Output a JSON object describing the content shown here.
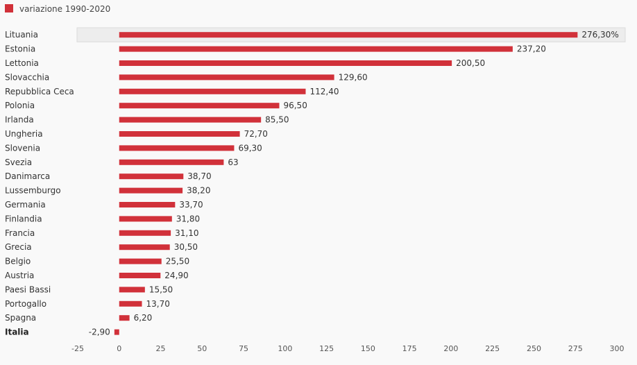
{
  "chart_data": {
    "type": "bar",
    "orientation": "horizontal",
    "legend": {
      "label": "variazione 1990-2020",
      "color": "#d1313a",
      "position": "top-left"
    },
    "categories": [
      "Lituania",
      "Estonia",
      "Lettonia",
      "Slovacchia",
      "Repubblica Ceca",
      "Polonia",
      "Irlanda",
      "Ungheria",
      "Slovenia",
      "Svezia",
      "Danimarca",
      "Lussemburgo",
      "Germania",
      "Finlandia",
      "Francia",
      "Grecia",
      "Belgio",
      "Austria",
      "Paesi Bassi",
      "Portogallo",
      "Spagna",
      "Italia"
    ],
    "values": [
      276.3,
      237.2,
      200.5,
      129.6,
      112.4,
      96.5,
      85.5,
      72.7,
      69.3,
      63,
      38.7,
      38.2,
      33.7,
      31.8,
      31.1,
      30.5,
      25.5,
      24.9,
      15.5,
      13.7,
      6.2,
      -2.9
    ],
    "value_labels": [
      "276,30%",
      "237,20",
      "200,50",
      "129,60",
      "112,40",
      "96,50",
      "85,50",
      "72,70",
      "69,30",
      "63",
      "38,70",
      "38,20",
      "33,70",
      "31,80",
      "31,10",
      "30,50",
      "25,50",
      "24,90",
      "15,50",
      "13,70",
      "6,20",
      "-2,90"
    ],
    "highlighted": [
      "Lituania"
    ],
    "bold_categories": [
      "Italia"
    ],
    "xlim": [
      -25,
      300
    ],
    "xticks": [
      "-25",
      "0",
      "25",
      "50",
      "75",
      "100",
      "125",
      "150",
      "175",
      "200",
      "225",
      "250",
      "275",
      "300"
    ],
    "grid": false,
    "bar_color": "#d1313a",
    "title": "",
    "xlabel": "",
    "ylabel": ""
  }
}
